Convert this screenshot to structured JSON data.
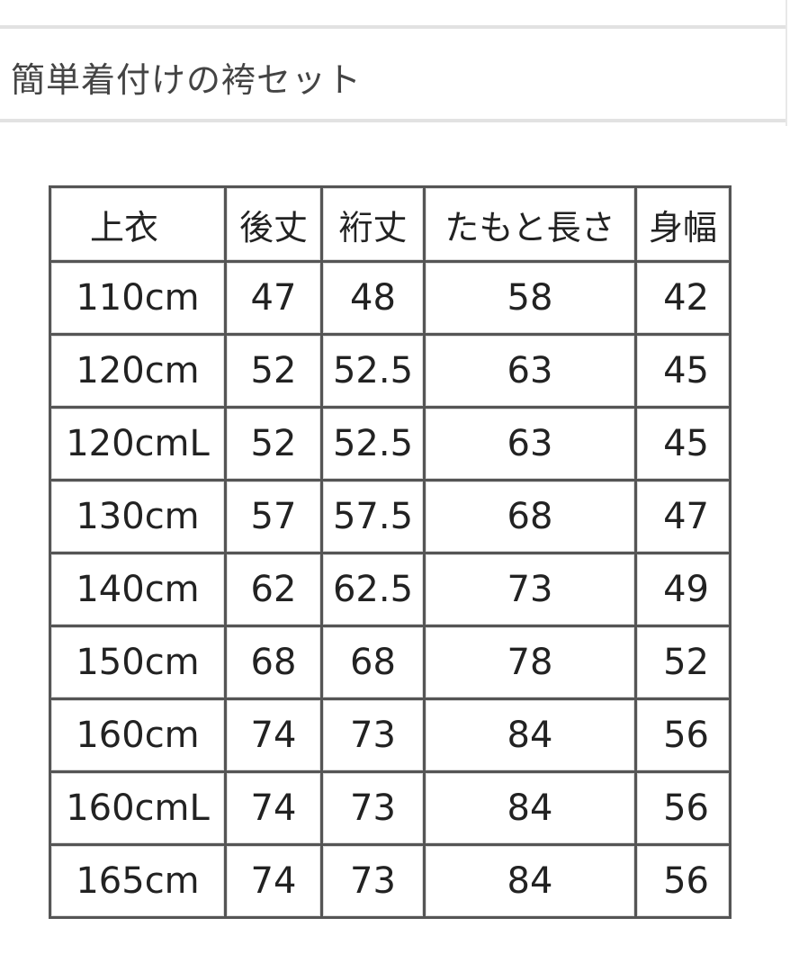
{
  "title": "簡単着付けの袴セット",
  "table": {
    "headers": [
      "上衣",
      "後丈",
      "裄丈",
      "たもと長さ",
      "身幅"
    ],
    "rows": [
      [
        "110cm",
        "47",
        "48",
        "58",
        "42"
      ],
      [
        "120cm",
        "52",
        "52.5",
        "63",
        "45"
      ],
      [
        "120cmL",
        "52",
        "52.5",
        "63",
        "45"
      ],
      [
        "130cm",
        "57",
        "57.5",
        "68",
        "47"
      ],
      [
        "140cm",
        "62",
        "62.5",
        "73",
        "49"
      ],
      [
        "150cm",
        "68",
        "68",
        "78",
        "52"
      ],
      [
        "160cm",
        "74",
        "73",
        "84",
        "56"
      ],
      [
        "160cmL",
        "74",
        "73",
        "84",
        "56"
      ],
      [
        "165cm",
        "74",
        "73",
        "84",
        "56"
      ]
    ]
  }
}
